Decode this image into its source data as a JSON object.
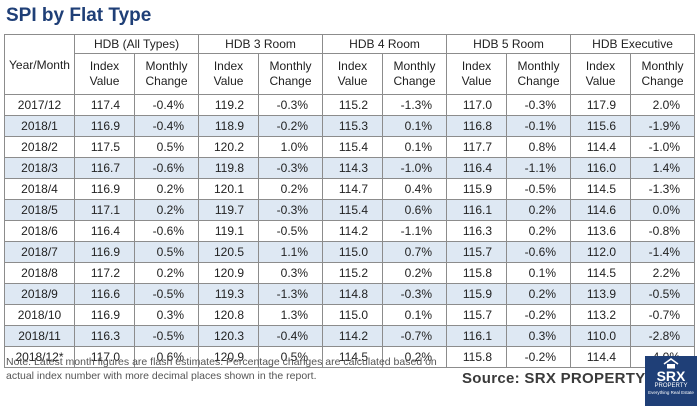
{
  "title": "SPI by Flat Type",
  "table": {
    "corner_label": "Year/Month",
    "groups": [
      "HDB (All Types)",
      "HDB 3 Room",
      "HDB 4 Room",
      "HDB 5 Room",
      "HDB Executive"
    ],
    "sub_headers": [
      "Index Value",
      "Monthly Change"
    ],
    "rows": [
      {
        "month": "2017/12",
        "values": [
          "117.4",
          "-0.4%",
          "119.2",
          "-0.3%",
          "115.2",
          "-1.3%",
          "117.0",
          "-0.3%",
          "117.9",
          "2.0%"
        ]
      },
      {
        "month": "2018/1",
        "values": [
          "116.9",
          "-0.4%",
          "118.9",
          "-0.2%",
          "115.3",
          "0.1%",
          "116.8",
          "-0.1%",
          "115.6",
          "-1.9%"
        ]
      },
      {
        "month": "2018/2",
        "values": [
          "117.5",
          "0.5%",
          "120.2",
          "1.0%",
          "115.4",
          "0.1%",
          "117.7",
          "0.8%",
          "114.4",
          "-1.0%"
        ]
      },
      {
        "month": "2018/3",
        "values": [
          "116.7",
          "-0.6%",
          "119.8",
          "-0.3%",
          "114.3",
          "-1.0%",
          "116.4",
          "-1.1%",
          "116.0",
          "1.4%"
        ]
      },
      {
        "month": "2018/4",
        "values": [
          "116.9",
          "0.2%",
          "120.1",
          "0.2%",
          "114.7",
          "0.4%",
          "115.9",
          "-0.5%",
          "114.5",
          "-1.3%"
        ]
      },
      {
        "month": "2018/5",
        "values": [
          "117.1",
          "0.2%",
          "119.7",
          "-0.3%",
          "115.4",
          "0.6%",
          "116.1",
          "0.2%",
          "114.6",
          "0.0%"
        ]
      },
      {
        "month": "2018/6",
        "values": [
          "116.4",
          "-0.6%",
          "119.1",
          "-0.5%",
          "114.2",
          "-1.1%",
          "116.3",
          "0.2%",
          "113.6",
          "-0.8%"
        ]
      },
      {
        "month": "2018/7",
        "values": [
          "116.9",
          "0.5%",
          "120.5",
          "1.1%",
          "115.0",
          "0.7%",
          "115.7",
          "-0.6%",
          "112.0",
          "-1.4%"
        ]
      },
      {
        "month": "2018/8",
        "values": [
          "117.2",
          "0.2%",
          "120.9",
          "0.3%",
          "115.2",
          "0.2%",
          "115.8",
          "0.1%",
          "114.5",
          "2.2%"
        ]
      },
      {
        "month": "2018/9",
        "values": [
          "116.6",
          "-0.5%",
          "119.3",
          "-1.3%",
          "114.8",
          "-0.3%",
          "115.9",
          "0.2%",
          "113.9",
          "-0.5%"
        ]
      },
      {
        "month": "2018/10",
        "values": [
          "116.9",
          "0.3%",
          "120.8",
          "1.3%",
          "115.0",
          "0.1%",
          "115.7",
          "-0.2%",
          "113.2",
          "-0.7%"
        ]
      },
      {
        "month": "2018/11",
        "values": [
          "116.3",
          "-0.5%",
          "120.3",
          "-0.4%",
          "114.2",
          "-0.7%",
          "116.1",
          "0.3%",
          "110.0",
          "-2.8%"
        ]
      },
      {
        "month": "2018/12*",
        "values": [
          "117.0",
          "0.6%",
          "120.9",
          "0.5%",
          "114.5",
          "0.2%",
          "115.8",
          "-0.2%",
          "114.4",
          "4.0%"
        ]
      }
    ]
  },
  "note": "Note: Latest month figures are flash estimates. Percentage changes are calculated based on actual index number with more decimal places shown in the report.",
  "source": "Source:  SRX PROPERTY",
  "logo": {
    "brand": "SRX",
    "sub": "PROPERTY",
    "tagline": "Everything Real Estate",
    "icon": "house-icon"
  },
  "colors": {
    "title": "#1f3f77",
    "stripe": "#dee8f3",
    "logo_bg": "#1f3f77"
  }
}
